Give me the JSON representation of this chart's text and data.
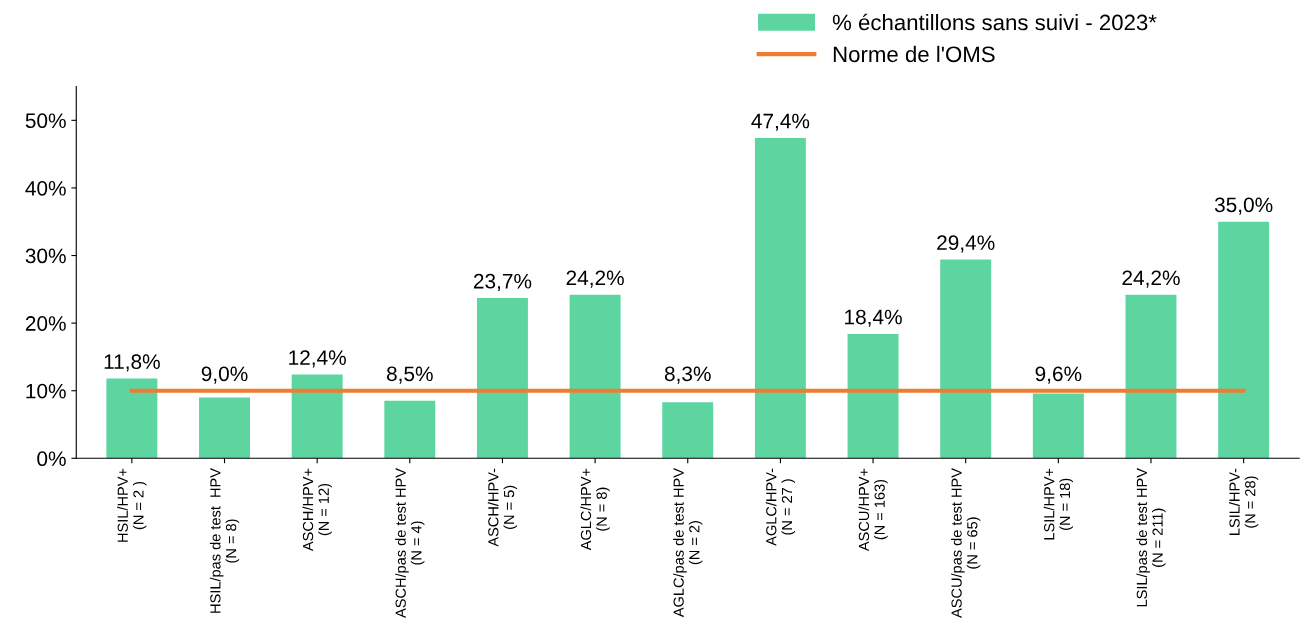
{
  "chart_data": {
    "type": "bar",
    "categories": [
      "HSIL/HPV+\n(N = 2 )",
      "HSIL/pas de test  HPV\n(N = 8)",
      "ASCH/HPV+\n(N = 12)",
      "ASCH/pas de test HPV\n(N = 4)",
      "ASCH/HPV-\n(N = 5)",
      "AGLC/HPV+\n(N = 8)",
      "AGLC/pas de test HPV\n(N = 2)",
      "AGLC/HPV-\n(N = 27 )",
      "ASCU/HPV+\n(N = 163)",
      "ASCU/pas de test HPV\n(N = 65)",
      "LSIL/HPV+\n(N = 18)",
      "LSIL/pas de test HPV\n(N = 211)",
      "LSIL/HPV-\n(N = 28)"
    ],
    "series": [
      {
        "name": "% échantillons sans suivi - 2023*",
        "color": "#5dd5a0",
        "values": [
          11.8,
          9.0,
          12.4,
          8.5,
          23.7,
          24.2,
          8.3,
          47.4,
          18.4,
          29.4,
          9.6,
          24.2,
          35.0
        ],
        "value_labels": [
          "11,8%",
          "9,0%",
          "12,4%",
          "8,5%",
          "23,7%",
          "24,2%",
          "8,3%",
          "47,4%",
          "18,4%",
          "29,4%",
          "9,6%",
          "24,2%",
          "35,0%"
        ]
      },
      {
        "name": "Norme de l'OMS",
        "type": "line",
        "color": "#ed7d31",
        "values": [
          10,
          10,
          10,
          10,
          10,
          10,
          10,
          10,
          10,
          10,
          10,
          10,
          10
        ]
      }
    ],
    "ylim": [
      0,
      55
    ],
    "yticks": [
      {
        "value": 0,
        "label": "0%"
      },
      {
        "value": 10,
        "label": "10%"
      },
      {
        "value": 20,
        "label": "20%"
      },
      {
        "value": 30,
        "label": "30%"
      },
      {
        "value": 40,
        "label": "40%"
      },
      {
        "value": 50,
        "label": "50%"
      }
    ],
    "grid": false,
    "legend": "top right"
  }
}
